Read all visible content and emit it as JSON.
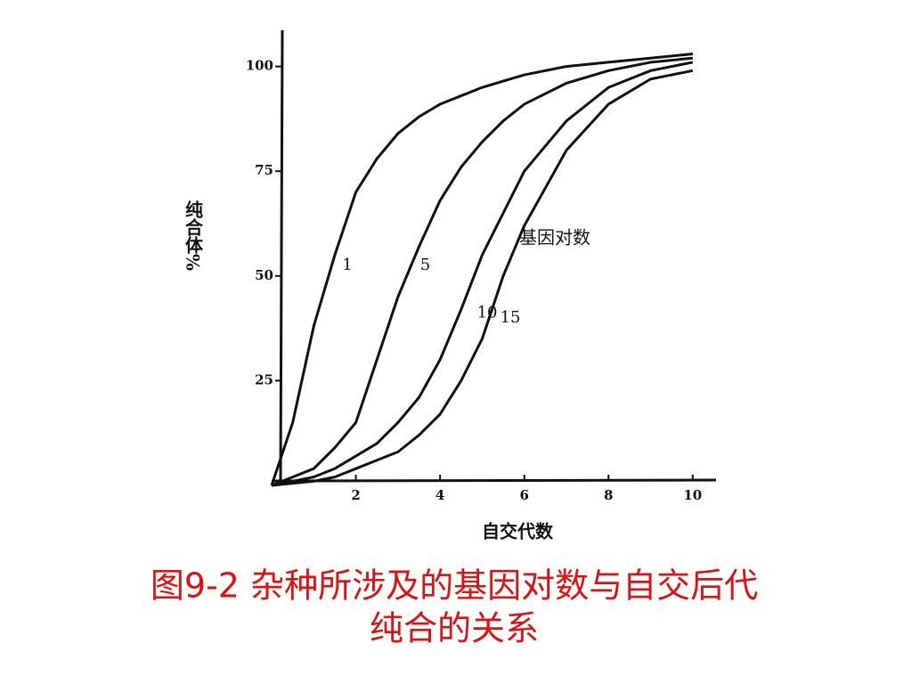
{
  "chart_data": {
    "type": "line",
    "caption": [
      "图9-2 杂种所涉及的基因对数与自交后代",
      "纯合的关系"
    ],
    "x_label": "自交代数",
    "y_label": "纯合体%",
    "annotation": "基因对数",
    "x": [
      0,
      0.5,
      1,
      1.5,
      2,
      2.5,
      3,
      3.5,
      4,
      4.5,
      5,
      5.5,
      6,
      7,
      8,
      9,
      10
    ],
    "series": [
      {
        "name": "1",
        "color": "#111111",
        "values": [
          0,
          15,
          38,
          55,
          70,
          78,
          84,
          88,
          91,
          93,
          95,
          96.5,
          98,
          100,
          101,
          102,
          103
        ]
      },
      {
        "name": "5",
        "color": "#111111",
        "values": [
          0,
          2,
          4,
          9,
          15,
          30,
          45,
          57,
          68,
          76,
          82,
          87,
          91,
          96,
          99,
          101,
          102
        ]
      },
      {
        "name": "10",
        "color": "#111111",
        "values": [
          0,
          1,
          2,
          4,
          7,
          10,
          15,
          21,
          30,
          42,
          55,
          65,
          75,
          87,
          95,
          99,
          101
        ]
      },
      {
        "name": "15",
        "color": "#111111",
        "values": [
          0,
          0.5,
          1,
          2,
          4,
          6,
          8,
          12,
          17,
          25,
          35,
          50,
          62,
          80,
          91,
          97,
          99
        ]
      }
    ],
    "xlim": [
      0,
      10.3
    ],
    "ylim": [
      0,
      108
    ],
    "xticks": [
      2,
      4,
      6,
      8,
      10
    ],
    "yticks": [
      25,
      50,
      75,
      100
    ],
    "grid": false
  }
}
